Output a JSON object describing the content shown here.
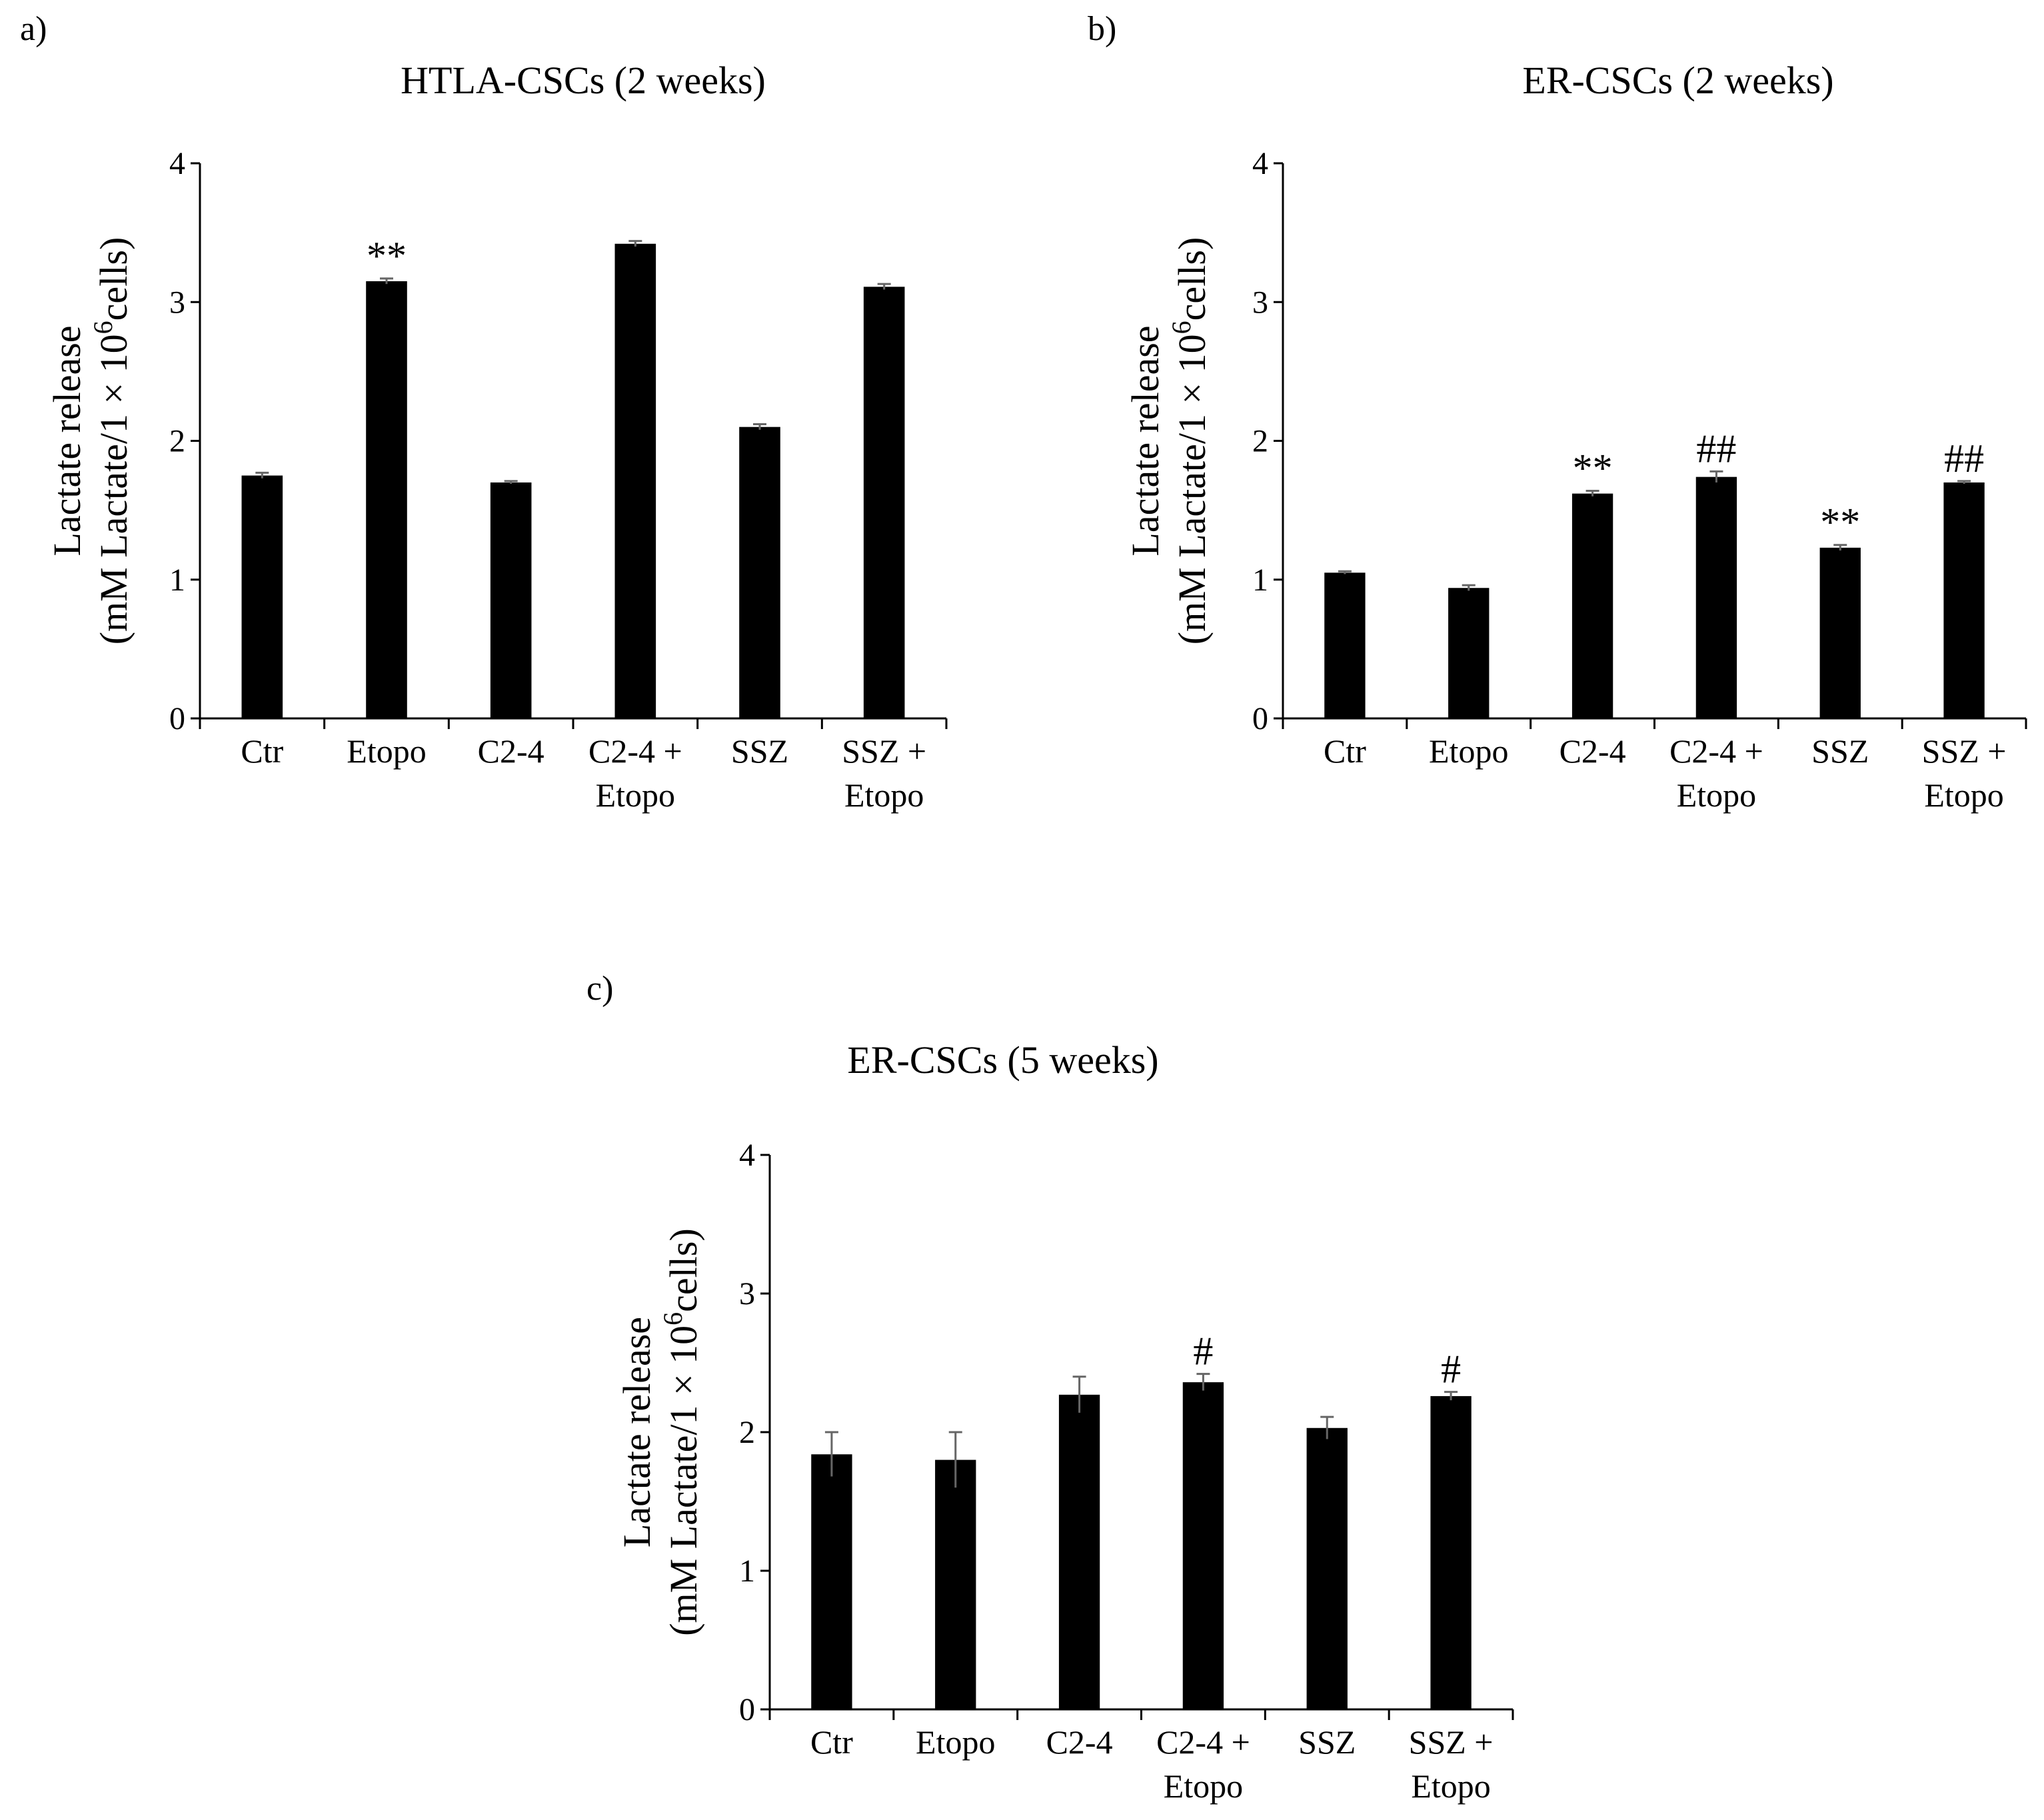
{
  "figure": {
    "bar_color": "#000000",
    "axis_color": "#000000",
    "error_bar_color": "#666666"
  },
  "chart_data": [
    {
      "panel": "a)",
      "type": "bar",
      "title": "HTLA-CSCs (2 weeks)",
      "ylabel_line1": "Lactate release",
      "ylabel_line2_pre": "(mM Lactate/1 × 10",
      "ylabel_sup": "6",
      "ylabel_line2_post": "cells)",
      "ylim": [
        0,
        4
      ],
      "yticks": [
        "0",
        "1",
        "2",
        "3",
        "4"
      ],
      "categories": [
        [
          "Ctr"
        ],
        [
          "Etopo"
        ],
        [
          "C2-4"
        ],
        [
          "C2-4 +",
          "Etopo"
        ],
        [
          "SSZ"
        ],
        [
          "SSZ +",
          "Etopo"
        ]
      ],
      "values": [
        1.75,
        3.15,
        1.7,
        3.42,
        2.1,
        3.11
      ],
      "errors": [
        0.02,
        0.02,
        0.01,
        0.02,
        0.02,
        0.02
      ],
      "annotations": [
        "",
        "**",
        "",
        "",
        "",
        ""
      ]
    },
    {
      "panel": "b)",
      "type": "bar",
      "title": "ER-CSCs (2 weeks)",
      "ylabel_line1": "Lactate release",
      "ylabel_line2_pre": "(mM Lactate/1 × 10",
      "ylabel_sup": "6",
      "ylabel_line2_post": "cells)",
      "ylim": [
        0,
        4
      ],
      "yticks": [
        "0",
        "1",
        "2",
        "3",
        "4"
      ],
      "categories": [
        [
          "Ctr"
        ],
        [
          "Etopo"
        ],
        [
          "C2-4"
        ],
        [
          "C2-4 +",
          "Etopo"
        ],
        [
          "SSZ"
        ],
        [
          "SSZ +",
          "Etopo"
        ]
      ],
      "values": [
        1.05,
        0.94,
        1.62,
        1.74,
        1.23,
        1.7
      ],
      "errors": [
        0.01,
        0.02,
        0.02,
        0.04,
        0.02,
        0.01
      ],
      "annotations": [
        "",
        "",
        "**",
        "##",
        "**",
        "##"
      ]
    },
    {
      "panel": "c)",
      "type": "bar",
      "title": "ER-CSCs (5 weeks)",
      "ylabel_line1": "Lactate release",
      "ylabel_line2_pre": "(mM Lactate/1 × 10",
      "ylabel_sup": "6",
      "ylabel_line2_post": "cells)",
      "ylim": [
        0,
        4
      ],
      "yticks": [
        "0",
        "1",
        "2",
        "3",
        "4"
      ],
      "categories": [
        [
          "Ctr"
        ],
        [
          "Etopo"
        ],
        [
          "C2-4"
        ],
        [
          "C2-4 +",
          "Etopo"
        ],
        [
          "SSZ"
        ],
        [
          "SSZ +",
          "Etopo"
        ]
      ],
      "values": [
        1.84,
        1.8,
        2.27,
        2.36,
        2.03,
        2.26
      ],
      "errors": [
        0.16,
        0.2,
        0.13,
        0.06,
        0.08,
        0.03
      ],
      "annotations": [
        "",
        "",
        "",
        "#",
        "",
        "#"
      ]
    }
  ]
}
